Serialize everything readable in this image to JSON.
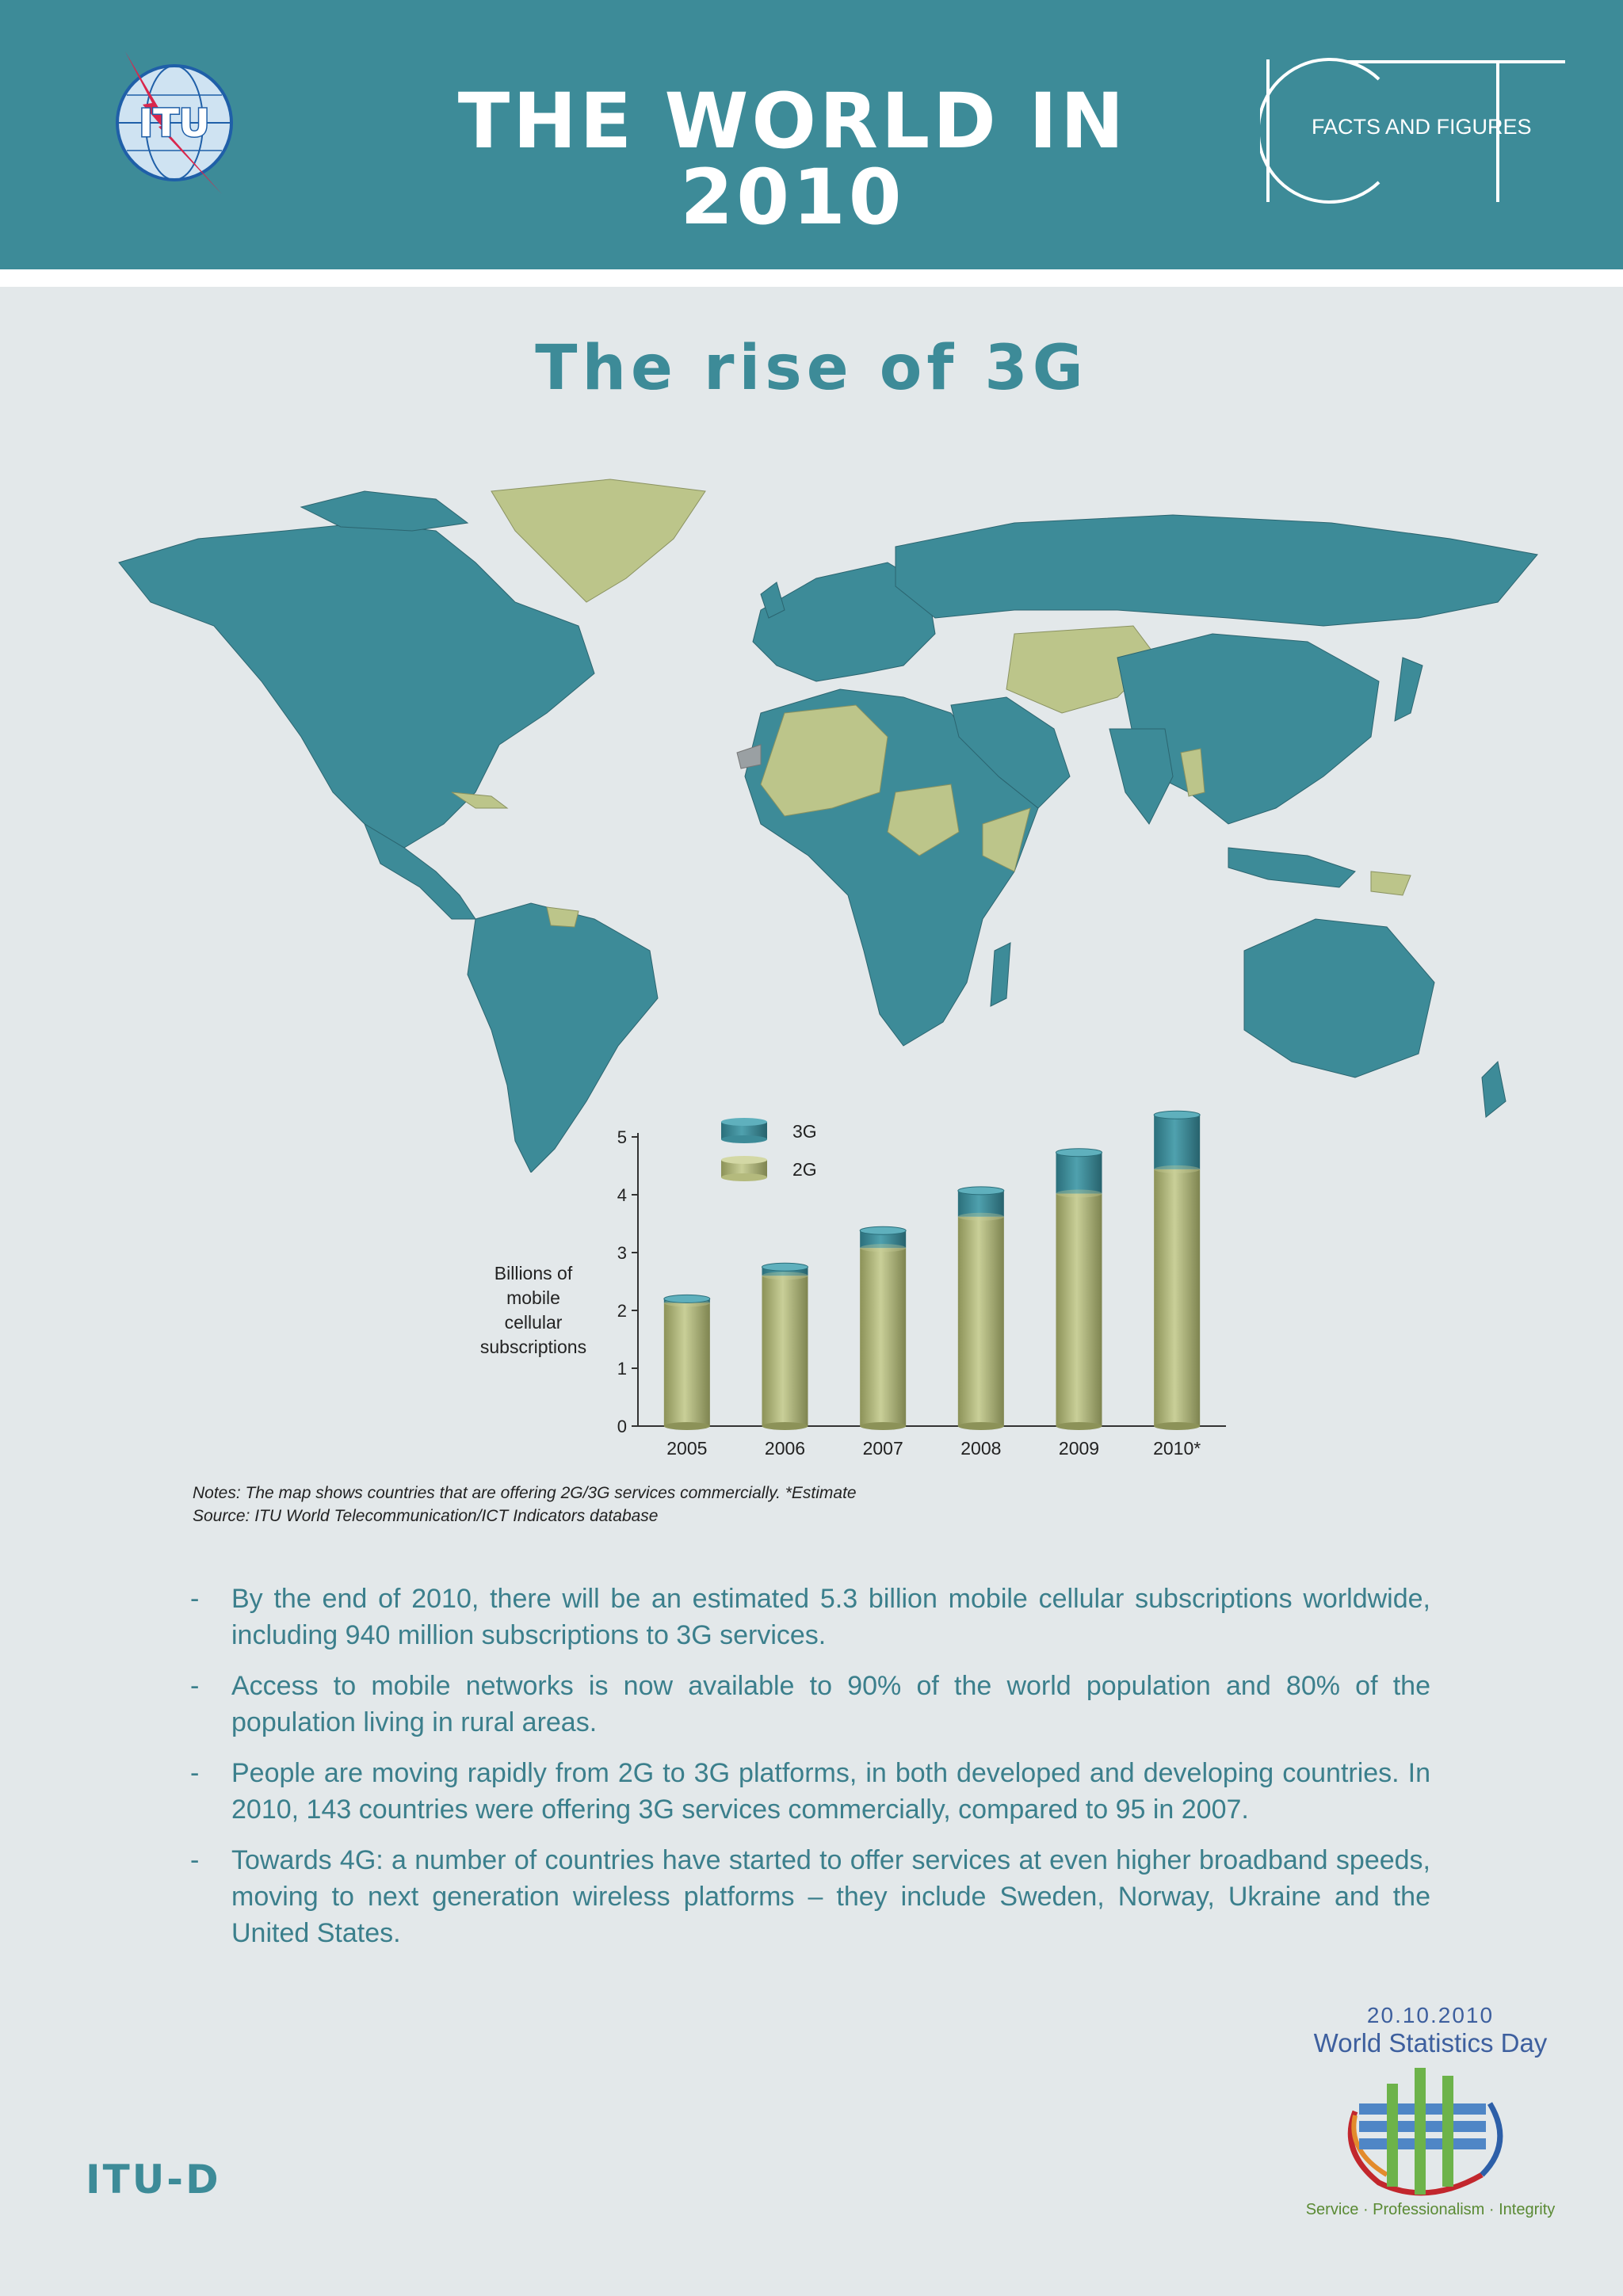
{
  "header": {
    "logo_text": "ITU",
    "title": "THE WORLD IN 2010",
    "ict_letters": "ICT",
    "ict_subtitle": "FACTS AND FIGURES"
  },
  "section_title": "The rise of 3G",
  "map": {
    "colors": {
      "3G": "#3d8b98",
      "2G": "#bcc58a",
      "no_data": "#9aa0a3",
      "background": "#e3e8ea"
    }
  },
  "chart_data": {
    "type": "bar",
    "stacked": true,
    "categories": [
      "2005",
      "2006",
      "2007",
      "2008",
      "2009",
      "2010*"
    ],
    "series": [
      {
        "name": "2G",
        "color": "#b4ba7d",
        "values": [
          2.13,
          2.6,
          3.08,
          3.62,
          4.02,
          4.44
        ]
      },
      {
        "name": "3G",
        "color": "#3d8b98",
        "values": [
          0.07,
          0.15,
          0.3,
          0.45,
          0.71,
          0.94
        ]
      }
    ],
    "ylabel": "Billions of mobile cellular subscriptions",
    "ylabel_lines": [
      "Billions of",
      "mobile",
      "cellular",
      "subscriptions"
    ],
    "ylim": [
      0,
      5
    ],
    "yticks": [
      0,
      1,
      2,
      3,
      4,
      5
    ],
    "legend_position": "top-left",
    "grid": false
  },
  "notes": {
    "line1": "Notes:  The map shows countries that are offering 2G/3G services commercially.  *Estimate",
    "line2": "Source:  ITU World Telecommunication/ICT Indicators database"
  },
  "bullets": [
    "By the end of 2010, there will be an estimated 5.3 billion mobile cellular subscriptions worldwide, including 940 million subscriptions to 3G services.",
    "Access to mobile networks is now available to 90% of the world population and 80% of the population living in rural areas.",
    "People are moving rapidly from 2G to 3G platforms, in both developed and developing countries. In 2010, 143 countries were offering 3G services commercially, compared to 95 in 2007.",
    "Towards 4G:  a number of countries have started to offer services at even higher broadband speeds, moving to next generation wireless platforms – they include Sweden, Norway, Ukraine and the United States."
  ],
  "bullet_marker": "-",
  "footer": {
    "wsd_date": "20.10.2010",
    "wsd_title": "World Statistics Day",
    "wsd_motto": "Service · Professionalism · Integrity",
    "itu_d": "ITU-D"
  }
}
